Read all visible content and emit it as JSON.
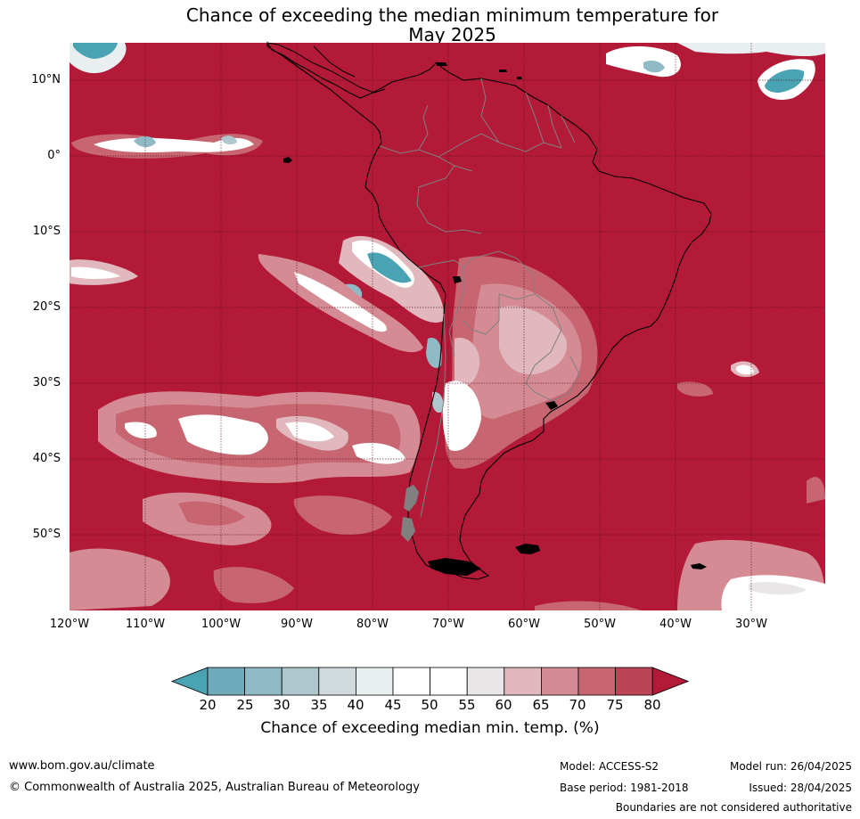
{
  "title_line1": "Chance of exceeding the median minimum temperature for",
  "title_line2": "May 2025",
  "lat_labels": [
    "10°N",
    "0°",
    "10°S",
    "20°S",
    "30°S",
    "40°S",
    "50°S"
  ],
  "lon_labels": [
    "120°W",
    "110°W",
    "100°W",
    "90°W",
    "80°W",
    "70°W",
    "60°W",
    "50°W",
    "40°W",
    "30°W"
  ],
  "colorbar": {
    "ticks": [
      "20",
      "25",
      "30",
      "35",
      "40",
      "45",
      "50",
      "55",
      "60",
      "65",
      "70",
      "75",
      "80"
    ],
    "colors": [
      "#4aa3b2",
      "#6fabbb",
      "#8fbac6",
      "#adc7cc",
      "#d1dadc",
      "#e9eff1",
      "#ffffff",
      "#ffffff",
      "#e8e6e7",
      "#e0b8bd",
      "#d48b94",
      "#c76571",
      "#bd4455",
      "#b21a37"
    ],
    "label": "Chance of exceeding median min. temp. (%)"
  },
  "footer": {
    "website": "www.bom.gov.au/climate",
    "copyright": "© Commonwealth of Australia 2025, Australian Bureau of Meteorology",
    "model": "Model: ACCESS-S2",
    "base_period": "Base period: 1981-2018",
    "model_run": "Model run: 26/04/2025",
    "issued": "Issued: 28/04/2025",
    "boundaries": "Boundaries are not considered authoritative"
  },
  "colors": {
    "dominant": "#b21a37",
    "coastline": "#000000",
    "borders": "#808080",
    "grid": "#5a0f1c"
  }
}
